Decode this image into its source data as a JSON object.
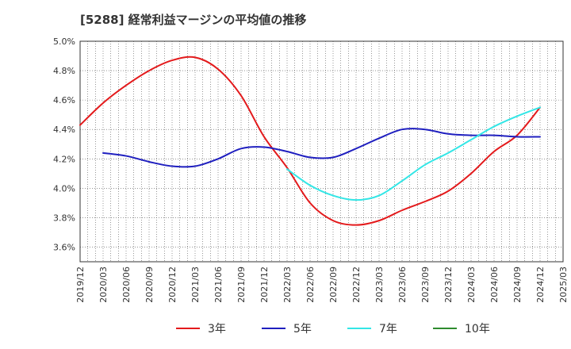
{
  "chart_data": {
    "type": "line",
    "title": "[5288]  経常利益マージンの平均値の推移",
    "xlabel": "",
    "ylabel": "",
    "ylim": [
      3.5,
      5.0
    ],
    "y_ticks": [
      "3.6%",
      "3.8%",
      "4.0%",
      "4.2%",
      "4.4%",
      "4.6%",
      "4.8%",
      "5.0%"
    ],
    "y_tick_values": [
      3.6,
      3.8,
      4.0,
      4.2,
      4.4,
      4.6,
      4.8,
      5.0
    ],
    "x_ticks": [
      "2019/12",
      "2020/03",
      "2020/06",
      "2020/09",
      "2020/12",
      "2021/03",
      "2021/06",
      "2021/09",
      "2021/12",
      "2022/03",
      "2022/06",
      "2022/09",
      "2022/12",
      "2023/03",
      "2023/06",
      "2023/09",
      "2023/12",
      "2024/03",
      "2024/06",
      "2024/09",
      "2024/12",
      "2025/03"
    ],
    "grid": true,
    "legend_position": "bottom",
    "series": [
      {
        "name": "3年",
        "color": "#e31a1c",
        "x": [
          "2019/12",
          "2020/03",
          "2020/06",
          "2020/09",
          "2020/12",
          "2021/03",
          "2021/06",
          "2021/09",
          "2021/12",
          "2022/03",
          "2022/06",
          "2022/09",
          "2022/12",
          "2023/03",
          "2023/06",
          "2023/09",
          "2023/12",
          "2024/03",
          "2024/06",
          "2024/09",
          "2024/12"
        ],
        "values": [
          4.43,
          4.58,
          4.7,
          4.8,
          4.87,
          4.89,
          4.81,
          4.63,
          4.35,
          4.14,
          3.9,
          3.78,
          3.75,
          3.78,
          3.85,
          3.91,
          3.98,
          4.1,
          4.25,
          4.36,
          4.55
        ]
      },
      {
        "name": "5年",
        "color": "#1f1fbf",
        "x": [
          "2020/03",
          "2020/06",
          "2020/09",
          "2020/12",
          "2021/03",
          "2021/06",
          "2021/09",
          "2021/12",
          "2022/03",
          "2022/06",
          "2022/09",
          "2022/12",
          "2023/03",
          "2023/06",
          "2023/09",
          "2023/12",
          "2024/03",
          "2024/06",
          "2024/09",
          "2024/12"
        ],
        "values": [
          4.24,
          4.22,
          4.18,
          4.15,
          4.15,
          4.2,
          4.27,
          4.28,
          4.25,
          4.21,
          4.21,
          4.27,
          4.34,
          4.4,
          4.4,
          4.37,
          4.36,
          4.36,
          4.35,
          4.35
        ]
      },
      {
        "name": "7年",
        "color": "#33e6e6",
        "x": [
          "2022/03",
          "2022/06",
          "2022/09",
          "2022/12",
          "2023/03",
          "2023/06",
          "2023/09",
          "2023/12",
          "2024/03",
          "2024/06",
          "2024/09",
          "2024/12"
        ],
        "values": [
          4.13,
          4.02,
          3.95,
          3.92,
          3.95,
          4.05,
          4.16,
          4.24,
          4.33,
          4.42,
          4.49,
          4.55
        ]
      },
      {
        "name": "10年",
        "color": "#2e8b2e",
        "x": [],
        "values": []
      }
    ]
  }
}
